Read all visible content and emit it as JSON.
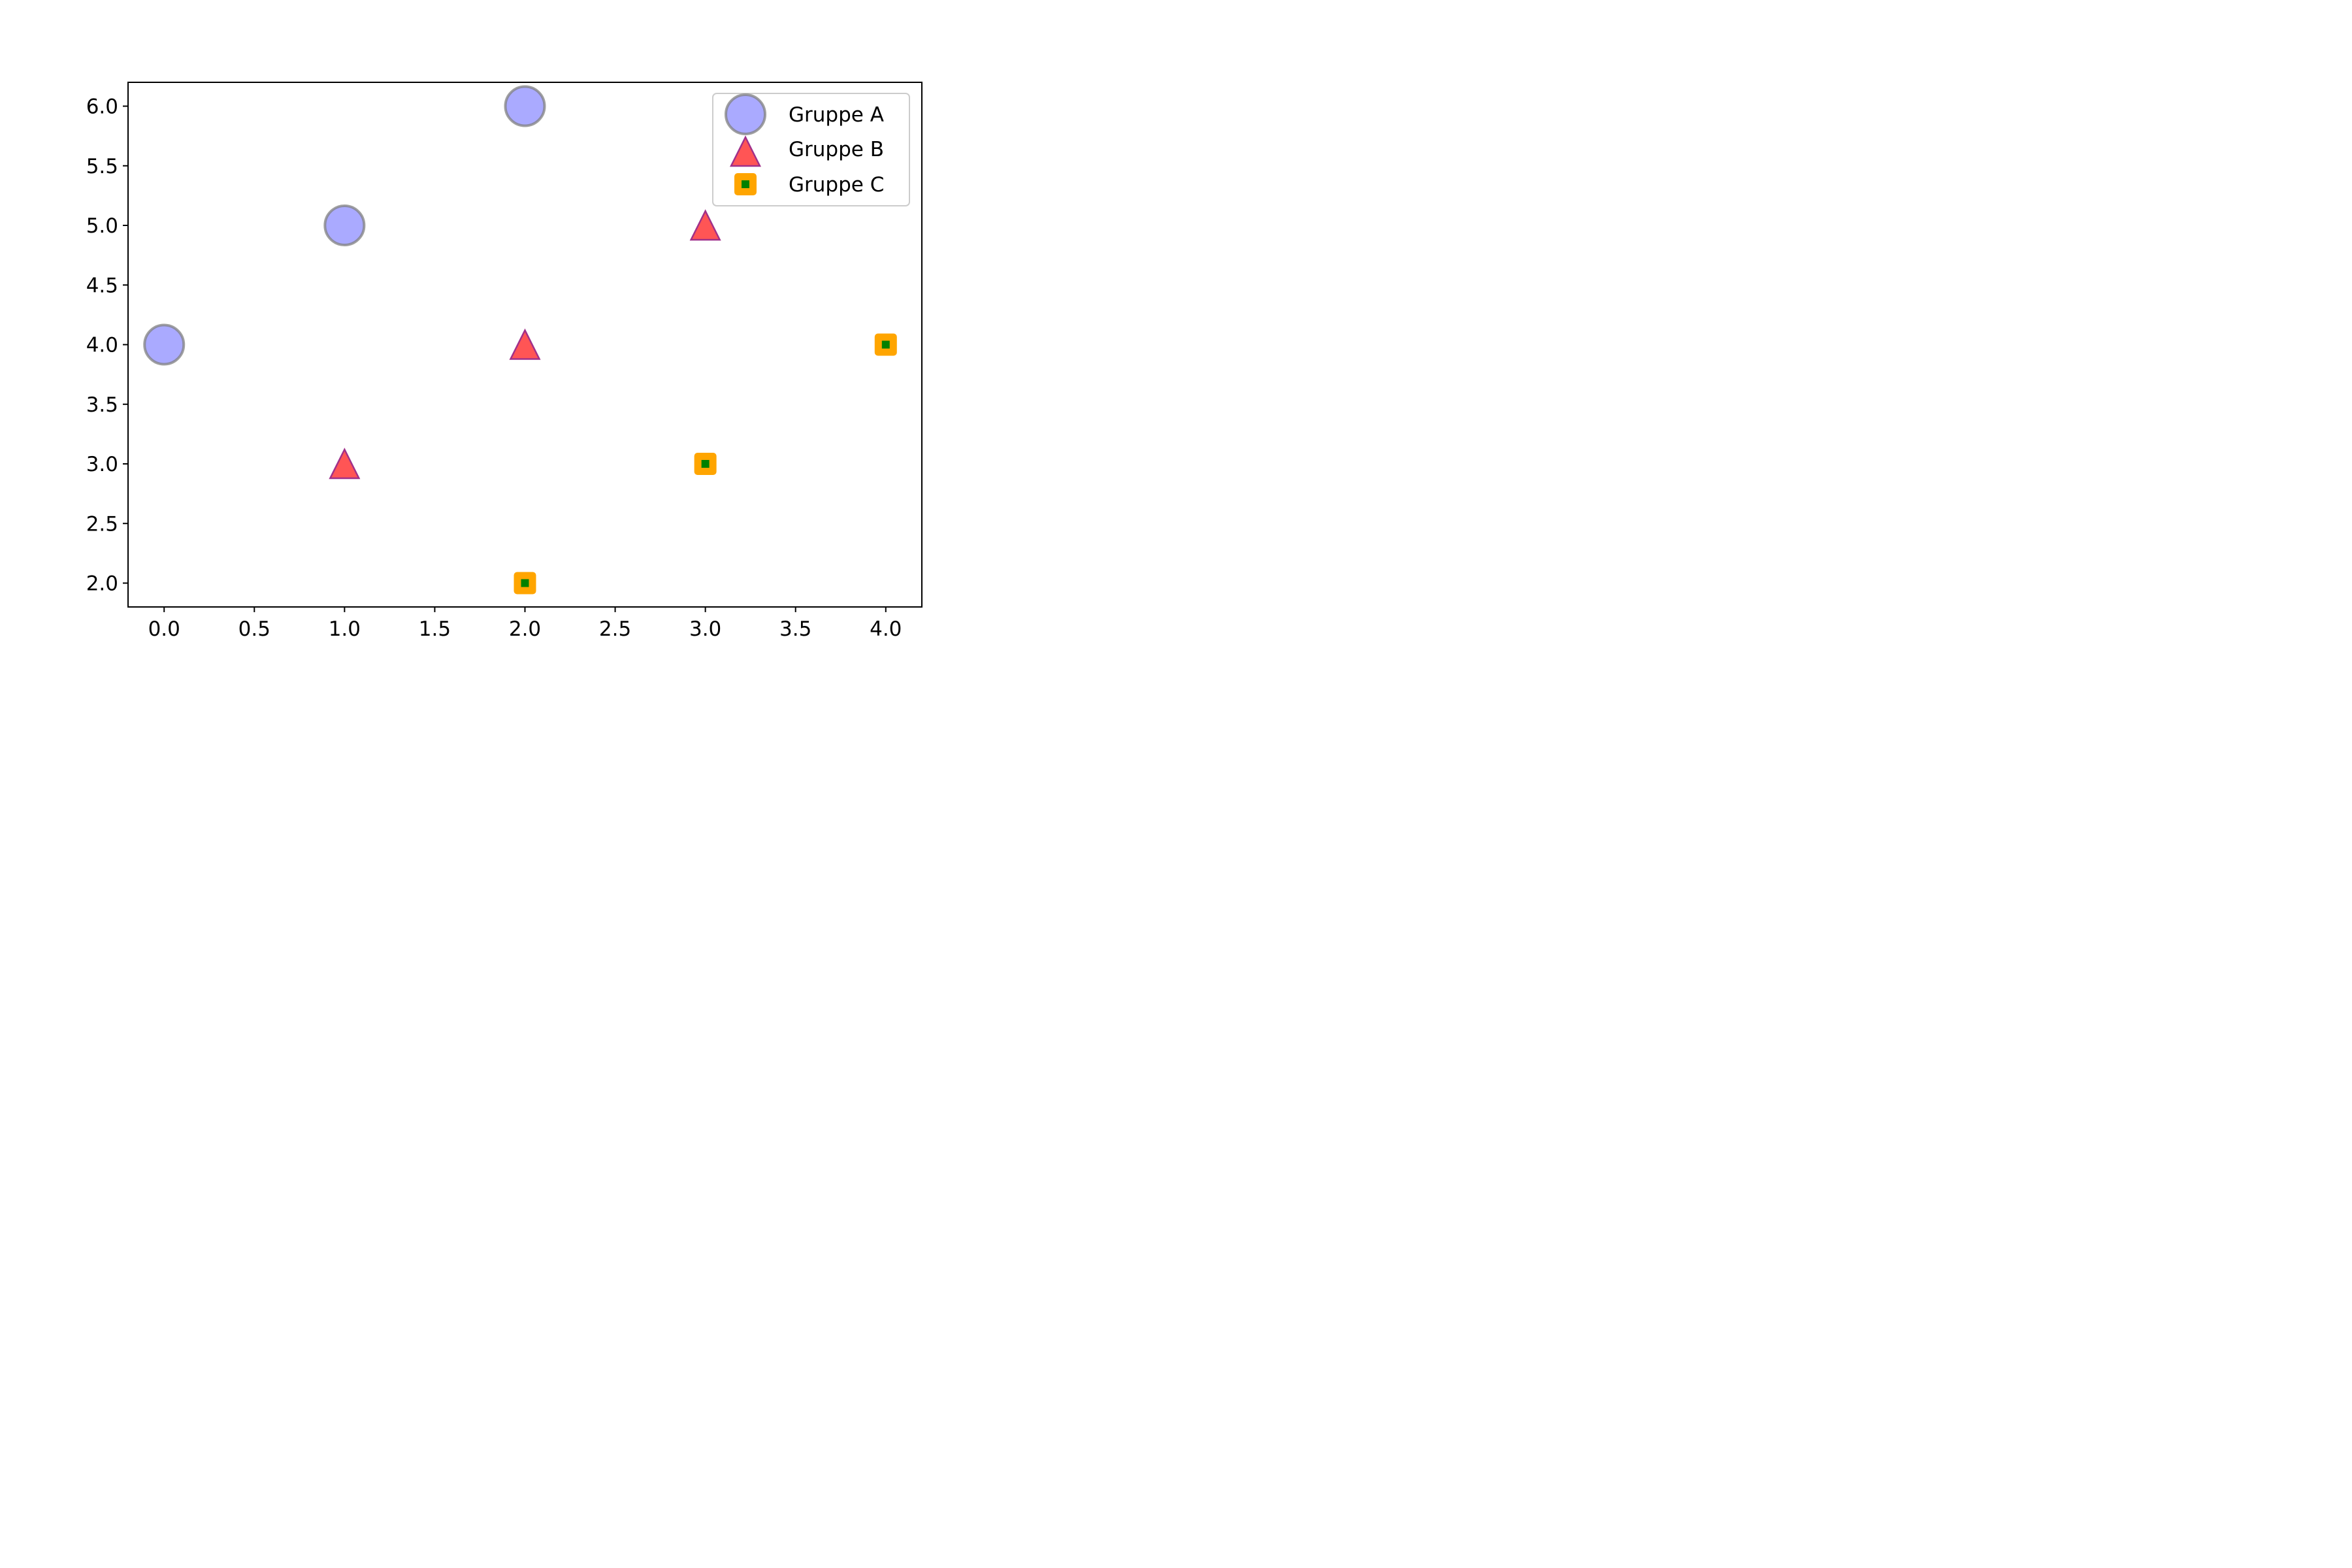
{
  "chart_data": {
    "type": "scatter",
    "title": "",
    "xlabel": "",
    "ylabel": "",
    "xlim": [
      -0.2,
      4.2
    ],
    "ylim": [
      1.8,
      6.2
    ],
    "xticks": [
      "0.0",
      "0.5",
      "1.0",
      "1.5",
      "2.0",
      "2.5",
      "3.0",
      "3.5",
      "4.0"
    ],
    "yticks": [
      "2.0",
      "2.5",
      "3.0",
      "3.5",
      "4.0",
      "4.5",
      "5.0",
      "5.5",
      "6.0"
    ],
    "grid": false,
    "legend_position": "top-right",
    "series": [
      {
        "name": "Gruppe A",
        "marker": "circle",
        "fill": "#aaaaff",
        "stroke": "#808080",
        "x": [
          0,
          1,
          2
        ],
        "y": [
          4,
          5,
          6
        ]
      },
      {
        "name": "Gruppe B",
        "marker": "triangle",
        "fill": "#ff5555",
        "stroke": "#a0308a",
        "x": [
          1,
          2,
          3
        ],
        "y": [
          3,
          4,
          5
        ]
      },
      {
        "name": "Gruppe C",
        "marker": "square",
        "fill": "#008000",
        "stroke": "#ffa500",
        "x": [
          2,
          3,
          4
        ],
        "y": [
          2,
          3,
          4
        ]
      }
    ]
  }
}
